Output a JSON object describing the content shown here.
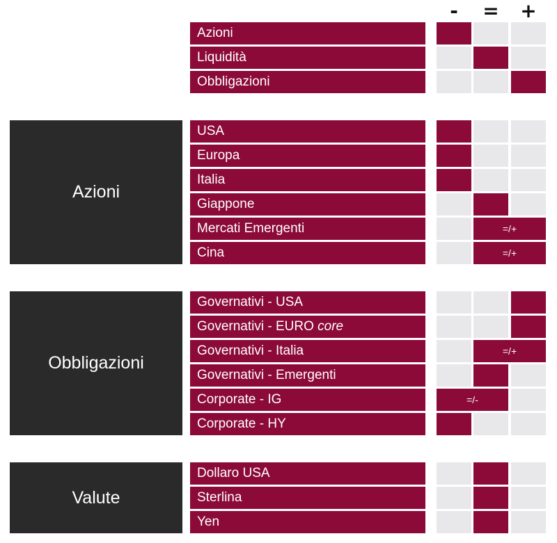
{
  "columns": [
    "-",
    "=",
    "+"
  ],
  "sections": [
    {
      "title": "",
      "rows": [
        {
          "label": "Azioni",
          "value": "-"
        },
        {
          "label": "Liquidità",
          "value": "="
        },
        {
          "label": "Obbligazioni",
          "value": "+"
        }
      ]
    },
    {
      "title": "Azioni",
      "rows": [
        {
          "label": "USA",
          "value": "-"
        },
        {
          "label": "Europa",
          "value": "-"
        },
        {
          "label": "Italia",
          "value": "-"
        },
        {
          "label": "Giappone",
          "value": "="
        },
        {
          "label": "Mercati Emergenti",
          "value": "=/+"
        },
        {
          "label": "Cina",
          "value": "=/+"
        }
      ]
    },
    {
      "title": "Obbligazioni",
      "rows": [
        {
          "label": "Governativi - USA",
          "value": "+"
        },
        {
          "label": "Governativi - EURO",
          "label_italic": "core",
          "value": "+"
        },
        {
          "label": "Governativi - Italia",
          "value": "=/+"
        },
        {
          "label": "Governativi - Emergenti",
          "value": "="
        },
        {
          "label": "Corporate - IG",
          "value": "=/-"
        },
        {
          "label": "Corporate - HY",
          "value": "-"
        }
      ]
    },
    {
      "title": "Valute",
      "rows": [
        {
          "label": "Dollaro USA",
          "value": "="
        },
        {
          "label": "Sterlina",
          "value": "="
        },
        {
          "label": "Yen",
          "value": "="
        }
      ]
    }
  ],
  "colors": {
    "accent": "#8b0a38",
    "group_bg": "#2a2a2a",
    "empty_cell": "#e8e8ea"
  }
}
